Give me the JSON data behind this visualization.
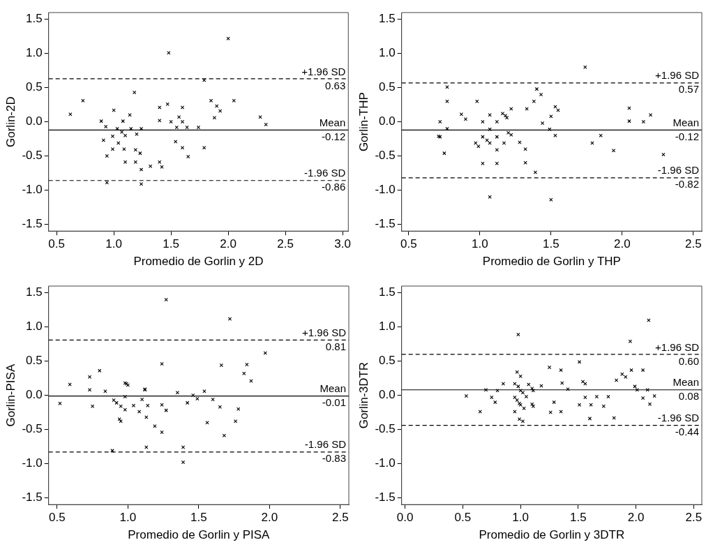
{
  "chart_data": [
    {
      "type": "scatter",
      "ylabel": "Gorlin-2D",
      "xlabel": "Promedio de Gorlin y 2D",
      "marker": "cross",
      "grid": false,
      "legend": false,
      "xlim": [
        0.43,
        3.05
      ],
      "xticks": [
        0.5,
        {
          "value": 1,
          "label": "1.0"
        },
        1.5,
        {
          "value": 2,
          "label": "2.0"
        },
        2.5,
        {
          "value": 3,
          "label": "3.0"
        }
      ],
      "ylim": [
        -1.6,
        1.6
      ],
      "yticks": [
        -1.5,
        {
          "value": -1,
          "label": "-1.0"
        },
        -0.5,
        {
          "value": 0,
          "label": "0.0"
        },
        0.5,
        {
          "value": 1,
          "label": "1.0"
        },
        1.5
      ],
      "ref_lines": [
        {
          "axis": "y",
          "value": 0.63,
          "label": "+1.96 SD\n0.63",
          "line_style": "dashed"
        },
        {
          "axis": "y",
          "value": -0.12,
          "label": "Mean\n-0.12",
          "line_style": "solid"
        },
        {
          "axis": "y",
          "value": -0.86,
          "label": "-1.96 SD\n-0.86",
          "line_style": "dashed"
        }
      ],
      "series": [
        {
          "color": "#000000",
          "x": [
            0.62,
            0.73,
            0.89,
            0.93,
            0.91,
            0.94,
            0.94,
            1.0,
            0.99,
            0.99,
            1.03,
            1.04,
            1.07,
            1.08,
            1.1,
            1.09,
            1.1,
            1.14,
            1.15,
            1.18,
            1.2,
            1.19,
            1.19,
            1.23,
            1.24,
            1.24,
            1.24,
            1.32,
            1.4,
            1.4,
            1.4,
            1.42,
            1.47,
            1.48,
            1.5,
            1.54,
            1.55,
            1.57,
            1.6,
            1.6,
            1.6,
            1.64,
            1.65,
            1.74,
            1.79,
            1.79,
            1.85,
            1.88,
            1.9,
            1.93,
            2.0,
            2.05,
            2.28,
            2.33
          ],
          "values": [
            0.11,
            0.31,
            0.01,
            -0.07,
            -0.27,
            -0.5,
            -0.89,
            0.17,
            -0.21,
            -0.4,
            -0.1,
            -0.31,
            -0.15,
            0.01,
            -0.2,
            -0.4,
            -0.59,
            0.1,
            -0.1,
            0.43,
            -0.18,
            -0.41,
            -0.59,
            -0.46,
            -0.1,
            -0.7,
            -0.91,
            -0.65,
            0.21,
            0.02,
            -0.59,
            -0.66,
            0.26,
            1.01,
            0.0,
            -0.29,
            -0.08,
            0.07,
            0.21,
            0.0,
            -0.38,
            -0.08,
            -0.51,
            -0.08,
            0.61,
            -0.38,
            0.31,
            0.06,
            0.23,
            0.16,
            1.22,
            0.31,
            0.07,
            -0.04
          ]
        }
      ]
    },
    {
      "type": "scatter",
      "ylabel": "Gorlin-THP",
      "xlabel": "Promedio de Gorlin y THP",
      "marker": "cross",
      "grid": false,
      "legend": false,
      "xlim": [
        0.45,
        2.56
      ],
      "xticks": [
        0.5,
        {
          "value": 1,
          "label": "1.0"
        },
        1.5,
        {
          "value": 2,
          "label": "2.0"
        },
        2.5
      ],
      "ylim": [
        -1.6,
        1.6
      ],
      "yticks": [
        -1.5,
        {
          "value": -1,
          "label": "-1.0"
        },
        -0.5,
        {
          "value": 0,
          "label": "0.0"
        },
        0.5,
        {
          "value": 1,
          "label": "1.0"
        },
        1.5
      ],
      "ref_lines": [
        {
          "axis": "y",
          "value": 0.57,
          "label": "+1.96 SD\n0.57",
          "line_style": "dashed"
        },
        {
          "axis": "y",
          "value": -0.12,
          "label": "Mean\n-0.12",
          "line_style": "solid"
        },
        {
          "axis": "y",
          "value": -0.82,
          "label": "-1.96 SD\n-0.82",
          "line_style": "dashed"
        }
      ],
      "series": [
        {
          "color": "#000000",
          "x": [
            0.72,
            0.71,
            0.72,
            0.75,
            0.77,
            0.77,
            0.77,
            0.87,
            0.9,
            0.97,
            0.98,
            0.99,
            1.02,
            1.02,
            1.02,
            1.05,
            1.07,
            1.07,
            1.07,
            1.07,
            1.12,
            1.12,
            1.12,
            1.12,
            1.16,
            1.17,
            1.18,
            1.19,
            1.2,
            1.22,
            1.22,
            1.28,
            1.32,
            1.32,
            1.33,
            1.38,
            1.4,
            1.39,
            1.43,
            1.44,
            1.49,
            1.5,
            1.5,
            1.53,
            1.53,
            1.55,
            1.74,
            1.79,
            1.85,
            1.94,
            2.05,
            2.05,
            2.15,
            2.2,
            2.29
          ],
          "values": [
            0.0,
            -0.21,
            -0.22,
            -0.46,
            0.51,
            0.3,
            -0.1,
            0.11,
            0.04,
            -0.31,
            0.3,
            -0.36,
            0.0,
            -0.22,
            -0.61,
            -0.27,
            0.1,
            -0.11,
            -0.31,
            -1.1,
            0.0,
            -0.22,
            -0.41,
            -0.61,
            0.12,
            -0.31,
            0.09,
            0.06,
            -0.16,
            -0.19,
            0.19,
            -0.3,
            -0.4,
            -0.6,
            0.19,
            0.3,
            0.48,
            -0.74,
            0.4,
            -0.02,
            -0.11,
            0.08,
            -1.14,
            0.22,
            -0.2,
            0.17,
            0.8,
            -0.31,
            -0.2,
            -0.42,
            0.2,
            0.01,
            0.0,
            0.1,
            -0.48
          ]
        }
      ]
    },
    {
      "type": "scatter",
      "ylabel": "Gorlin-PISA",
      "xlabel": "Promedio de Gorlin y PISA",
      "marker": "cross",
      "grid": false,
      "legend": false,
      "xlim": [
        0.44,
        2.56
      ],
      "xticks": [
        0.5,
        {
          "value": 1,
          "label": "1.0"
        },
        1.5,
        {
          "value": 2,
          "label": "2.0"
        },
        2.5
      ],
      "ylim": [
        -1.6,
        1.6
      ],
      "yticks": [
        -1.5,
        {
          "value": -1,
          "label": "-1.0"
        },
        -0.5,
        {
          "value": 0,
          "label": "0.0"
        },
        0.5,
        {
          "value": 1,
          "label": "1.0"
        },
        1.5
      ],
      "ref_lines": [
        {
          "axis": "y",
          "value": 0.81,
          "label": "+1.96 SD\n0.81",
          "line_style": "dashed"
        },
        {
          "axis": "y",
          "value": -0.01,
          "label": "Mean\n-0.01",
          "line_style": "solid"
        },
        {
          "axis": "y",
          "value": -0.83,
          "label": "-1.96 SD\n-0.83",
          "line_style": "dashed"
        }
      ],
      "series": [
        {
          "color": "#000000",
          "x": [
            0.52,
            0.59,
            0.73,
            0.73,
            0.75,
            0.8,
            0.84,
            0.89,
            0.9,
            0.92,
            0.94,
            0.95,
            0.95,
            0.98,
            0.98,
            0.98,
            0.99,
            1.0,
            1.04,
            1.08,
            1.1,
            1.12,
            1.12,
            1.13,
            1.13,
            1.14,
            1.19,
            1.24,
            1.24,
            1.24,
            1.27,
            1.27,
            1.35,
            1.39,
            1.39,
            1.42,
            1.46,
            1.49,
            1.54,
            1.56,
            1.6,
            1.65,
            1.66,
            1.68,
            1.72,
            1.76,
            1.78,
            1.82,
            1.84,
            1.87,
            1.97
          ],
          "values": [
            -0.12,
            0.16,
            0.27,
            0.08,
            -0.16,
            0.36,
            0.06,
            -0.81,
            -0.07,
            -0.11,
            -0.35,
            -0.38,
            -0.16,
            0.18,
            -0.02,
            -0.21,
            0.17,
            0.15,
            -0.15,
            -0.24,
            -0.06,
            0.09,
            0.08,
            -0.32,
            -0.76,
            -0.15,
            -0.45,
            -0.14,
            -0.54,
            0.46,
            -0.22,
            1.4,
            0.04,
            -0.76,
            -0.98,
            -0.11,
            0.0,
            -0.05,
            0.06,
            -0.4,
            -0.06,
            -0.17,
            0.44,
            -0.59,
            1.12,
            -0.38,
            -0.2,
            0.32,
            0.45,
            0.21,
            0.62
          ]
        }
      ]
    },
    {
      "type": "scatter",
      "ylabel": "Gorlin-3DTR",
      "xlabel": "Promedio de Gorlin y 3DTR",
      "marker": "cross",
      "grid": false,
      "legend": false,
      "xlim": [
        -0.03,
        2.57
      ],
      "xticks": [
        {
          "value": 0,
          "label": "0.0"
        },
        0.5,
        {
          "value": 1,
          "label": "1.0"
        },
        1.5,
        {
          "value": 2,
          "label": "2.0"
        },
        2.5
      ],
      "ylim": [
        -1.6,
        1.6
      ],
      "yticks": [
        -1.5,
        {
          "value": -1,
          "label": "-1.0"
        },
        -0.5,
        {
          "value": 0,
          "label": "0.0"
        },
        0.5,
        {
          "value": 1,
          "label": "1.0"
        },
        1.5
      ],
      "ref_lines": [
        {
          "axis": "y",
          "value": 0.6,
          "label": "+1.96 SD\n0.60",
          "line_style": "dashed"
        },
        {
          "axis": "y",
          "value": 0.08,
          "label": "Mean\n0.08",
          "line_style": "solid"
        },
        {
          "axis": "y",
          "value": -0.44,
          "label": "-1.96 SD\n-0.44",
          "line_style": "dashed"
        }
      ],
      "series": [
        {
          "color": "#000000",
          "x": [
            0.53,
            0.65,
            0.7,
            0.75,
            0.78,
            0.8,
            0.85,
            0.95,
            0.95,
            0.95,
            0.97,
            0.98,
            0.98,
            0.97,
            0.99,
            0.99,
            1.0,
            1.0,
            1.0,
            1.02,
            1.02,
            1.03,
            1.05,
            1.07,
            1.1,
            1.1,
            1.11,
            1.11,
            1.18,
            1.25,
            1.26,
            1.29,
            1.35,
            1.36,
            1.35,
            1.41,
            1.51,
            1.51,
            1.54,
            1.56,
            1.56,
            1.6,
            1.61,
            1.66,
            1.72,
            1.76,
            1.81,
            1.83,
            1.88,
            1.91,
            1.95,
            1.96,
            1.99,
            2.01,
            2.06,
            2.06,
            2.1,
            2.11,
            2.12,
            2.16
          ],
          "values": [
            -0.01,
            -0.24,
            0.08,
            -0.03,
            -0.1,
            0.07,
            0.17,
            0.17,
            -0.03,
            -0.24,
            0.34,
            0.13,
            0.89,
            -0.07,
            -0.12,
            -0.35,
            0.28,
            0.07,
            -0.14,
            -0.38,
            0.04,
            -0.19,
            -0.02,
            0.16,
            -0.13,
            0.1,
            -0.16,
            0.07,
            0.14,
            0.41,
            -0.25,
            -0.1,
            0.37,
            0.18,
            -0.24,
            0.09,
            0.49,
            -0.14,
            0.2,
            0.17,
            -0.03,
            -0.34,
            -0.14,
            -0.02,
            -0.16,
            -0.02,
            -0.33,
            0.22,
            0.31,
            0.27,
            0.79,
            0.37,
            0.13,
            0.08,
            -0.04,
            0.37,
            0.08,
            1.1,
            -0.13,
            -0.01
          ]
        }
      ]
    }
  ]
}
